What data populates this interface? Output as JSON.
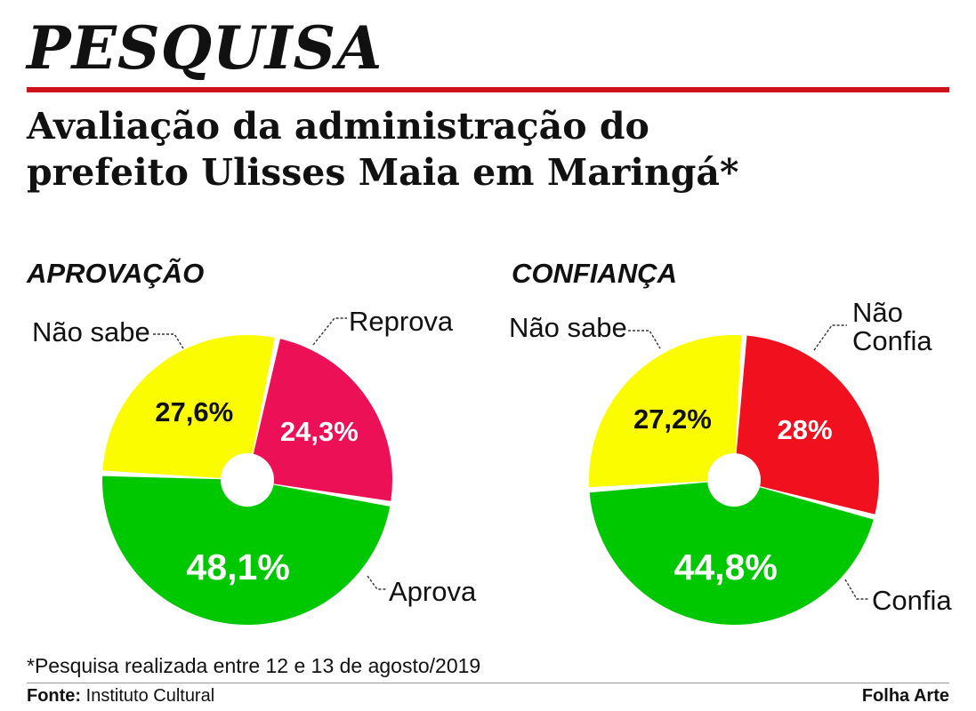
{
  "kicker": "PESQUISA",
  "headline": {
    "line1": "Avaliação da administração do",
    "line2": "prefeito Ulisses Maia em Maringá*"
  },
  "colors": {
    "accent_red": "#d0131b",
    "green": "#00c800",
    "yellow": "#fcfc00",
    "pink": "#ec1156",
    "red": "#f0101e"
  },
  "chart_data": [
    {
      "type": "pie",
      "style": "donut",
      "title": "APROVAÇÃO",
      "unit": "%",
      "slices": [
        {
          "label": "Reprova",
          "value": 24.3,
          "display": "24,3%",
          "color": "#ec1156",
          "text_color": "#ffffff"
        },
        {
          "label": "Aprova",
          "value": 48.1,
          "display": "48,1%",
          "color": "#00c800",
          "text_color": "#ffffff"
        },
        {
          "label": "Não sabe",
          "value": 27.6,
          "display": "27,6%",
          "color": "#fcfc00",
          "text_color": "#111111"
        }
      ]
    },
    {
      "type": "pie",
      "style": "donut",
      "title": "CONFIANÇA",
      "unit": "%",
      "slices": [
        {
          "label": "Não Confia",
          "value": 28,
          "display": "28%",
          "color": "#f0101e",
          "text_color": "#ffffff"
        },
        {
          "label": "Confia",
          "value": 44.8,
          "display": "44,8%",
          "color": "#00c800",
          "text_color": "#ffffff"
        },
        {
          "label": "Não sabe",
          "value": 27.2,
          "display": "27,2%",
          "color": "#fcfc00",
          "text_color": "#111111"
        }
      ]
    }
  ],
  "note": "*Pesquisa realizada entre 12 e 13 de agosto/2019",
  "footer": {
    "source_label": "Fonte:",
    "source_value": " Instituto Cultural",
    "credit": "Folha Arte"
  }
}
